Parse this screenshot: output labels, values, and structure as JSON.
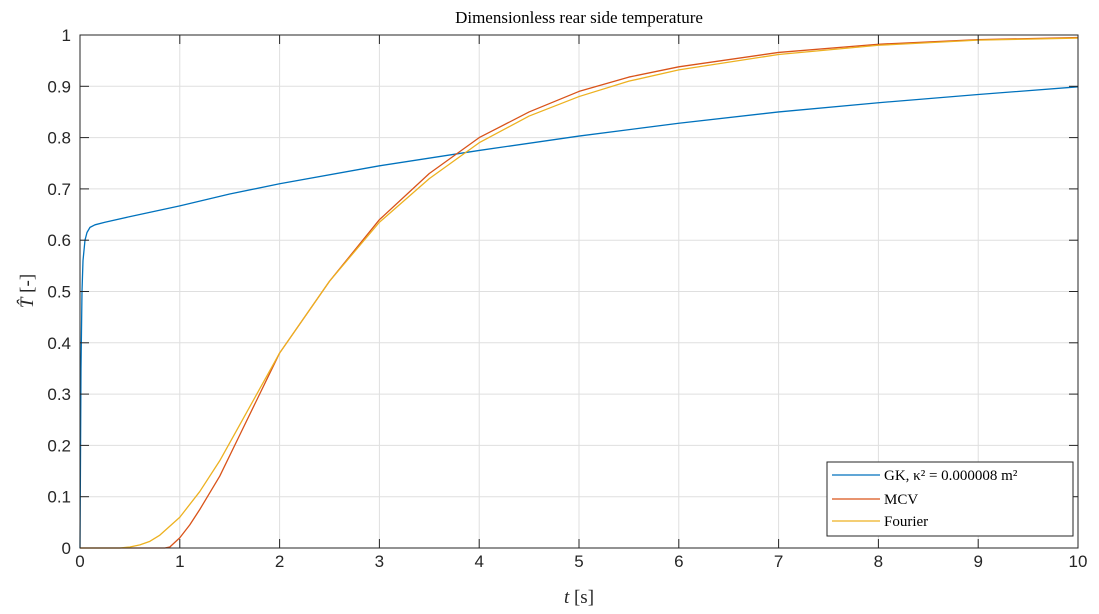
{
  "chart_data": {
    "type": "line",
    "title": "Dimensionless rear side temperature",
    "xlabel": "t [s]",
    "xlabel_var": "t",
    "xlabel_unit": "[s]",
    "ylabel": "T̂ [-]",
    "ylabel_var": "T̂",
    "ylabel_unit": "[-]",
    "xlim": [
      0,
      10
    ],
    "ylim": [
      0,
      1
    ],
    "x_ticks": [
      "0",
      "1",
      "2",
      "3",
      "4",
      "5",
      "6",
      "7",
      "8",
      "9",
      "10"
    ],
    "y_ticks": [
      "0",
      "0.1",
      "0.2",
      "0.3",
      "0.4",
      "0.5",
      "0.6",
      "0.7",
      "0.8",
      "0.9",
      "1"
    ],
    "grid": true,
    "legend_position": "bottom-right",
    "series": [
      {
        "name": "GK, κ² = 0.000008 m²",
        "color": "#0072BD",
        "x": [
          0,
          0.01,
          0.02,
          0.03,
          0.05,
          0.07,
          0.1,
          0.15,
          0.25,
          0.5,
          1,
          1.5,
          2,
          3,
          4,
          5,
          6,
          7,
          8,
          9,
          10
        ],
        "y": [
          0,
          0.35,
          0.5,
          0.56,
          0.6,
          0.615,
          0.625,
          0.63,
          0.635,
          0.646,
          0.667,
          0.69,
          0.71,
          0.745,
          0.775,
          0.803,
          0.828,
          0.85,
          0.868,
          0.884,
          0.899
        ]
      },
      {
        "name": "MCV",
        "color": "#D95319",
        "x": [
          0,
          0.85,
          0.9,
          1,
          1.1,
          1.2,
          1.4,
          1.6,
          1.8,
          2,
          2.5,
          3,
          3.5,
          4,
          4.5,
          5,
          5.5,
          6,
          7,
          8,
          9,
          10
        ],
        "y": [
          0,
          0,
          0.002,
          0.02,
          0.045,
          0.075,
          0.14,
          0.22,
          0.3,
          0.38,
          0.52,
          0.64,
          0.73,
          0.8,
          0.85,
          0.89,
          0.918,
          0.938,
          0.966,
          0.982,
          0.991,
          0.995
        ]
      },
      {
        "name": "Fourier",
        "color": "#EDB120",
        "x": [
          0,
          0.4,
          0.5,
          0.6,
          0.7,
          0.8,
          1,
          1.2,
          1.4,
          1.6,
          1.8,
          2,
          2.5,
          3,
          3.5,
          4,
          4.5,
          5,
          5.5,
          6,
          7,
          8,
          9,
          10
        ],
        "y": [
          0,
          0,
          0.002,
          0.006,
          0.013,
          0.025,
          0.06,
          0.11,
          0.17,
          0.24,
          0.31,
          0.38,
          0.52,
          0.635,
          0.72,
          0.79,
          0.842,
          0.88,
          0.91,
          0.932,
          0.962,
          0.98,
          0.99,
          0.994
        ]
      }
    ]
  }
}
